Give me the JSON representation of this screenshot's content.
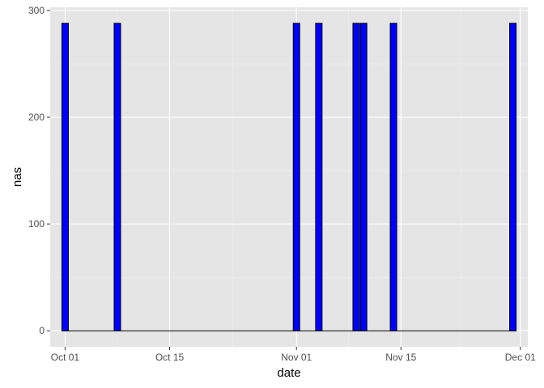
{
  "chart_data": {
    "type": "bar",
    "xlabel": "date",
    "ylabel": "nas",
    "x_axis": {
      "type": "date",
      "range": [
        "2013-09-29",
        "2013-12-02"
      ],
      "ticks": [
        {
          "date": "2013-10-01",
          "label": "Oct 01"
        },
        {
          "date": "2013-10-15",
          "label": "Oct 15"
        },
        {
          "date": "2013-11-01",
          "label": "Nov 01"
        },
        {
          "date": "2013-11-15",
          "label": "Nov 15"
        },
        {
          "date": "2013-12-01",
          "label": "Dec 01"
        }
      ]
    },
    "y_axis": {
      "range": [
        -15,
        303
      ],
      "ticks": [
        0,
        100,
        200,
        300
      ]
    },
    "series": [
      {
        "points": [
          {
            "x": "2013-10-01",
            "y": 288
          },
          {
            "x": "2013-10-08",
            "y": 288
          },
          {
            "x": "2013-11-01",
            "y": 288
          },
          {
            "x": "2013-11-04",
            "y": 288
          },
          {
            "x": "2013-11-09",
            "y": 288
          },
          {
            "x": "2013-11-10",
            "y": 288
          },
          {
            "x": "2013-11-14",
            "y": 288
          },
          {
            "x": "2013-11-30",
            "y": 288
          }
        ]
      }
    ],
    "baseline_span": [
      "2013-10-01",
      "2013-11-30"
    ],
    "grid": true,
    "legend": "none",
    "colors": {
      "bar_fill": "#0000ff",
      "bar_stroke": "#000000",
      "panel_background": "#e5e5e5",
      "grid_major": "#ffffff",
      "grid_minor": "#f2f2f2"
    }
  }
}
